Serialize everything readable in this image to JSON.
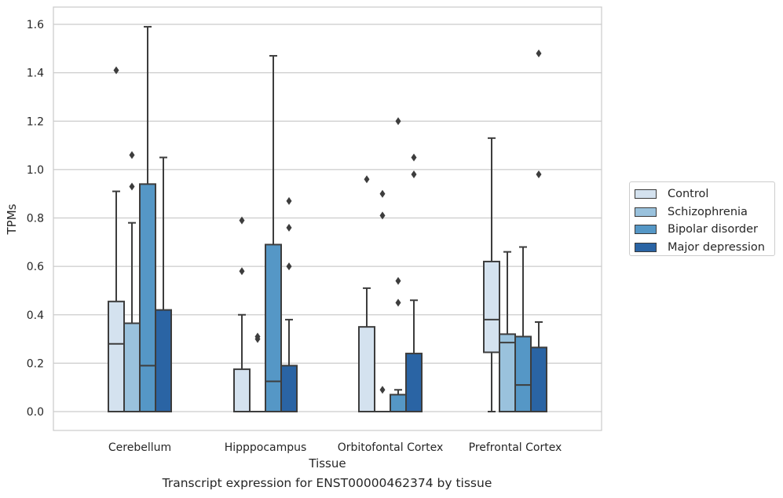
{
  "chart_data": {
    "type": "box",
    "xlabel": "Tissue",
    "ylabel": "TPMs",
    "footer": "Transcript expression for ENST00000462374 by tissue",
    "ylim": [
      -0.08,
      1.67
    ],
    "yticks": [
      "0.0",
      "0.2",
      "0.4",
      "0.6",
      "0.8",
      "1.0",
      "1.2",
      "1.4",
      "1.6"
    ],
    "categories": [
      "Cerebellum",
      "Hipppocampus",
      "Orbitofontal Cortex",
      "Prefrontal Cortex"
    ],
    "legend_position": "right",
    "grid": "horizontal",
    "series": [
      {
        "name": "Control",
        "color": "#d4e2ef",
        "boxes": [
          {
            "q1": 0.0,
            "median": 0.28,
            "q3": 0.455,
            "whisker_low": 0.0,
            "whisker_high": 0.91,
            "outliers": [
              1.41
            ]
          },
          {
            "q1": 0.0,
            "median": 0.0,
            "q3": 0.175,
            "whisker_low": 0.0,
            "whisker_high": 0.4,
            "outliers": [
              0.58,
              0.79
            ]
          },
          {
            "q1": 0.0,
            "median": 0.0,
            "q3": 0.35,
            "whisker_low": 0.0,
            "whisker_high": 0.51,
            "outliers": [
              0.96
            ]
          },
          {
            "q1": 0.245,
            "median": 0.38,
            "q3": 0.62,
            "whisker_low": 0.0,
            "whisker_high": 1.13,
            "outliers": []
          }
        ]
      },
      {
        "name": "Schizophrenia",
        "color": "#9ac2dd",
        "boxes": [
          {
            "q1": 0.0,
            "median": 0.0,
            "q3": 0.365,
            "whisker_low": 0.0,
            "whisker_high": 0.78,
            "outliers": [
              0.93,
              1.06
            ]
          },
          {
            "q1": 0.0,
            "median": 0.0,
            "q3": 0.0,
            "whisker_low": 0.0,
            "whisker_high": 0.0,
            "outliers": [
              0.3,
              0.31
            ]
          },
          {
            "q1": 0.0,
            "median": 0.0,
            "q3": 0.0,
            "whisker_low": 0.0,
            "whisker_high": 0.0,
            "outliers": [
              0.09,
              0.81,
              0.9
            ]
          },
          {
            "q1": 0.0,
            "median": 0.285,
            "q3": 0.32,
            "whisker_low": 0.0,
            "whisker_high": 0.66,
            "outliers": []
          }
        ]
      },
      {
        "name": "Bipolar disorder",
        "color": "#5597c6",
        "boxes": [
          {
            "q1": 0.0,
            "median": 0.19,
            "q3": 0.94,
            "whisker_low": 0.0,
            "whisker_high": 1.59,
            "outliers": []
          },
          {
            "q1": 0.0,
            "median": 0.125,
            "q3": 0.69,
            "whisker_low": 0.0,
            "whisker_high": 1.47,
            "outliers": []
          },
          {
            "q1": 0.0,
            "median": 0.0,
            "q3": 0.07,
            "whisker_low": 0.0,
            "whisker_high": 0.09,
            "outliers": [
              0.45,
              0.54,
              1.2
            ]
          },
          {
            "q1": 0.0,
            "median": 0.11,
            "q3": 0.31,
            "whisker_low": 0.0,
            "whisker_high": 0.68,
            "outliers": []
          }
        ]
      },
      {
        "name": "Major depression",
        "color": "#2a64a4",
        "boxes": [
          {
            "q1": 0.0,
            "median": 0.0,
            "q3": 0.42,
            "whisker_low": 0.0,
            "whisker_high": 1.05,
            "outliers": []
          },
          {
            "q1": 0.0,
            "median": 0.0,
            "q3": 0.19,
            "whisker_low": 0.0,
            "whisker_high": 0.38,
            "outliers": [
              0.6,
              0.76,
              0.87
            ]
          },
          {
            "q1": 0.0,
            "median": 0.0,
            "q3": 0.24,
            "whisker_low": 0.0,
            "whisker_high": 0.46,
            "outliers": [
              0.98,
              1.05
            ]
          },
          {
            "q1": 0.0,
            "median": 0.0,
            "q3": 0.265,
            "whisker_low": 0.0,
            "whisker_high": 0.37,
            "outliers": [
              0.98,
              1.48
            ]
          }
        ]
      }
    ]
  }
}
